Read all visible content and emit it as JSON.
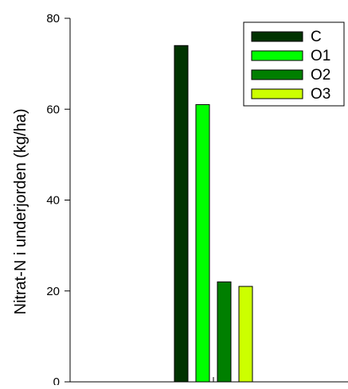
{
  "chart_data": {
    "type": "bar",
    "title": "",
    "xlabel": "",
    "ylabel": "Nitrat-N i underjorden (kg/ha)",
    "ylim": [
      0,
      80
    ],
    "yticks": [
      0,
      20,
      40,
      60,
      80
    ],
    "grid": false,
    "legend_position": "top-right",
    "categories": [
      ""
    ],
    "series": [
      {
        "name": "C",
        "values": [
          74
        ],
        "color": "#003300"
      },
      {
        "name": "O1",
        "values": [
          61
        ],
        "color": "#00FF00"
      },
      {
        "name": "O2",
        "values": [
          22
        ],
        "color": "#007F00"
      },
      {
        "name": "O3",
        "values": [
          21
        ],
        "color": "#CCFF00"
      }
    ]
  }
}
